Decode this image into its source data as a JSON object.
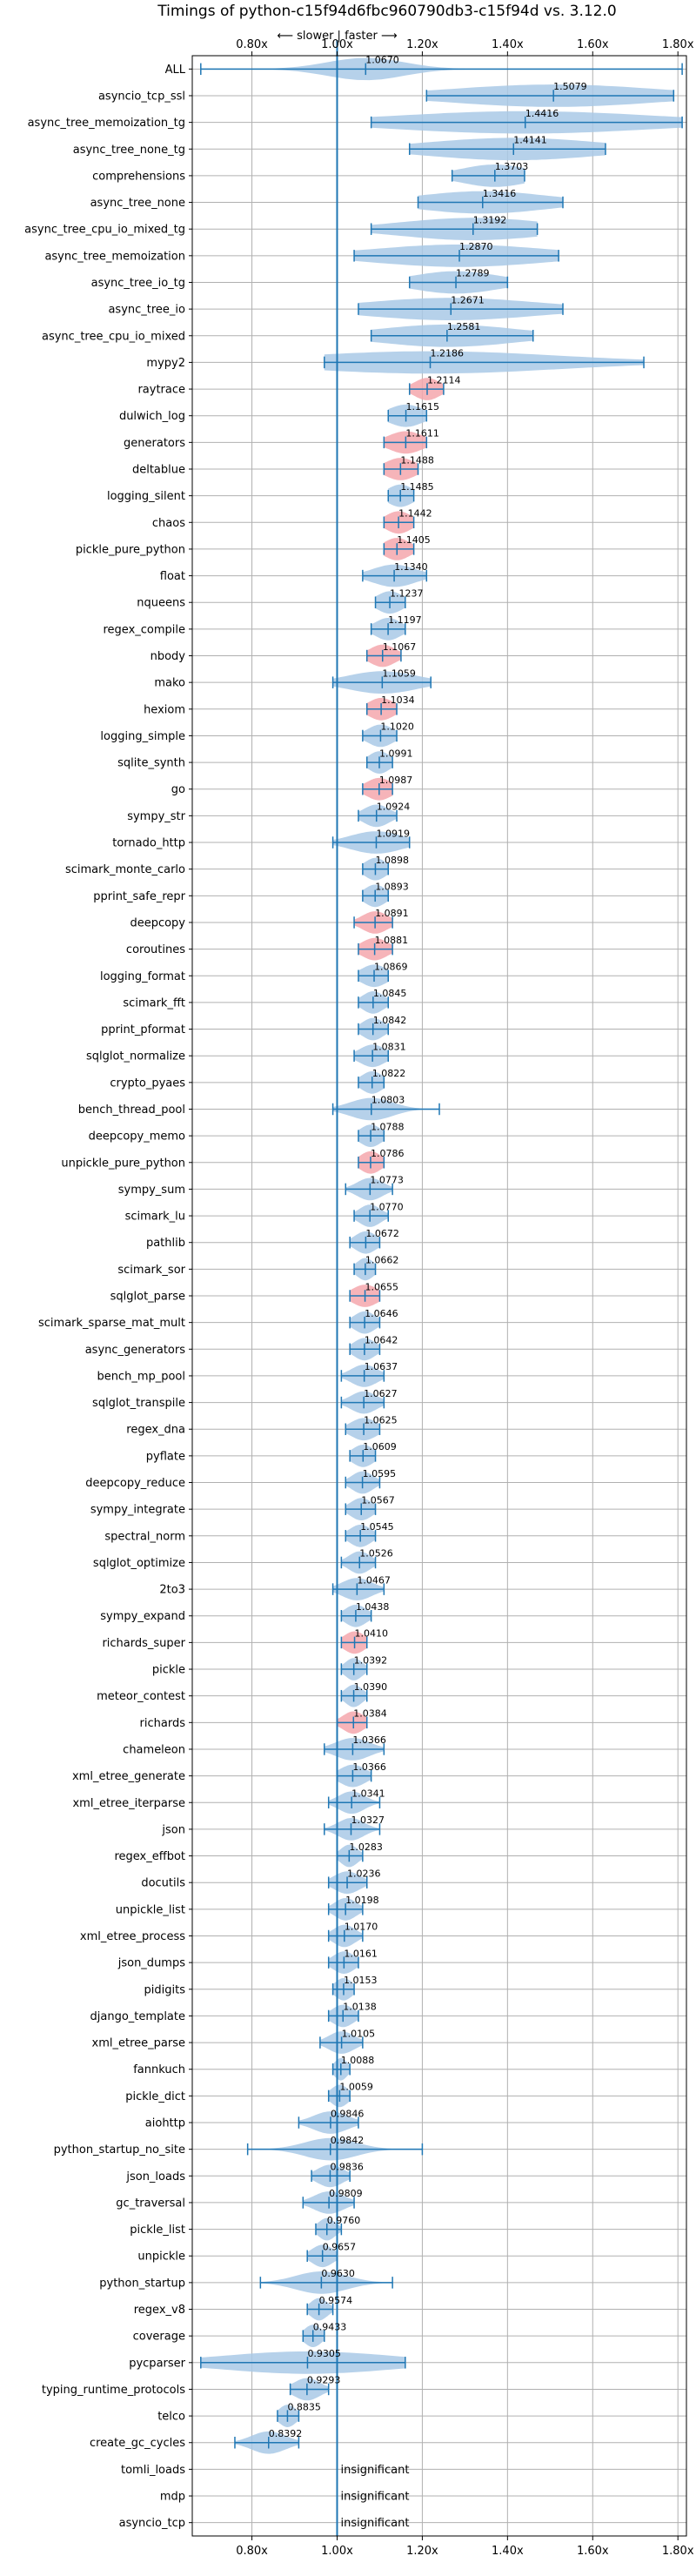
{
  "chart_data": {
    "type": "violin",
    "title": "Timings of python-c15f94d6fbc960790db3-c15f94d vs. 3.12.0",
    "annotation": "⟵ slower | faster ⟶",
    "xlim": [
      0.66,
      1.82
    ],
    "xticks": [
      0.8,
      1.0,
      1.2,
      1.4,
      1.6,
      1.8
    ],
    "xtick_labels": [
      "0.80x",
      "1.00x",
      "1.20x",
      "1.40x",
      "1.60x",
      "1.80x"
    ],
    "reference_x": 1.0,
    "grid": true,
    "colors": {
      "violin": "#a9c9e6",
      "highlight": "#f5a7ad",
      "line": "#1f77b4",
      "grid": "#b0b0b0"
    },
    "insignificant_label": "insignificant",
    "benchmarks": [
      {
        "name": "ALL",
        "value": 1.067,
        "label": "1.0670",
        "min": 0.68,
        "max": 1.81,
        "spread": 0.09
      },
      {
        "name": "asyncio_tcp_ssl",
        "value": 1.5079,
        "label": "1.5079",
        "min": 1.21,
        "max": 1.79,
        "spread": 0.24
      },
      {
        "name": "async_tree_memoization_tg",
        "value": 1.4416,
        "label": "1.4416",
        "min": 1.08,
        "max": 1.81,
        "spread": 0.3
      },
      {
        "name": "async_tree_none_tg",
        "value": 1.4141,
        "label": "1.4141",
        "min": 1.17,
        "max": 1.63,
        "spread": 0.2
      },
      {
        "name": "comprehensions",
        "value": 1.3703,
        "label": "1.3703",
        "min": 1.27,
        "max": 1.44,
        "spread": 0.08
      },
      {
        "name": "async_tree_none",
        "value": 1.3416,
        "label": "1.3416",
        "min": 1.19,
        "max": 1.53,
        "spread": 0.15
      },
      {
        "name": "async_tree_cpu_io_mixed_tg",
        "value": 1.3192,
        "label": "1.3192",
        "min": 1.08,
        "max": 1.47,
        "spread": 0.17
      },
      {
        "name": "async_tree_memoization",
        "value": 1.287,
        "label": "1.2870",
        "min": 1.04,
        "max": 1.52,
        "spread": 0.2
      },
      {
        "name": "async_tree_io_tg",
        "value": 1.2789,
        "label": "1.2789",
        "min": 1.17,
        "max": 1.4,
        "spread": 0.1
      },
      {
        "name": "async_tree_io",
        "value": 1.2671,
        "label": "1.2671",
        "min": 1.05,
        "max": 1.53,
        "spread": 0.2
      },
      {
        "name": "async_tree_cpu_io_mixed",
        "value": 1.2581,
        "label": "1.2581",
        "min": 1.08,
        "max": 1.46,
        "spread": 0.16
      },
      {
        "name": "mypy2",
        "value": 1.2186,
        "label": "1.2186",
        "min": 0.97,
        "max": 1.72,
        "spread": 0.3
      },
      {
        "name": "raytrace",
        "value": 1.2114,
        "label": "1.2114",
        "min": 1.17,
        "max": 1.25,
        "spread": 0.03,
        "highlight": true
      },
      {
        "name": "dulwich_log",
        "value": 1.1615,
        "label": "1.1615",
        "min": 1.12,
        "max": 1.21,
        "spread": 0.04
      },
      {
        "name": "generators",
        "value": 1.1611,
        "label": "1.1611",
        "min": 1.11,
        "max": 1.21,
        "spread": 0.04,
        "highlight": true
      },
      {
        "name": "deltablue",
        "value": 1.1488,
        "label": "1.1488",
        "min": 1.11,
        "max": 1.19,
        "spread": 0.035,
        "highlight": true
      },
      {
        "name": "logging_silent",
        "value": 1.1485,
        "label": "1.1485",
        "min": 1.12,
        "max": 1.18,
        "spread": 0.03
      },
      {
        "name": "chaos",
        "value": 1.1442,
        "label": "1.1442",
        "min": 1.11,
        "max": 1.18,
        "spread": 0.03,
        "highlight": true
      },
      {
        "name": "pickle_pure_python",
        "value": 1.1405,
        "label": "1.1405",
        "min": 1.11,
        "max": 1.18,
        "spread": 0.03,
        "highlight": true
      },
      {
        "name": "float",
        "value": 1.134,
        "label": "1.1340",
        "min": 1.06,
        "max": 1.21,
        "spread": 0.05
      },
      {
        "name": "nqueens",
        "value": 1.1237,
        "label": "1.1237",
        "min": 1.09,
        "max": 1.16,
        "spread": 0.03
      },
      {
        "name": "regex_compile",
        "value": 1.1197,
        "label": "1.1197",
        "min": 1.08,
        "max": 1.16,
        "spread": 0.03
      },
      {
        "name": "nbody",
        "value": 1.1067,
        "label": "1.1067",
        "min": 1.07,
        "max": 1.15,
        "spread": 0.03,
        "highlight": true
      },
      {
        "name": "mako",
        "value": 1.1059,
        "label": "1.1059",
        "min": 0.99,
        "max": 1.22,
        "spread": 0.08
      },
      {
        "name": "hexiom",
        "value": 1.1034,
        "label": "1.1034",
        "min": 1.07,
        "max": 1.14,
        "spread": 0.03,
        "highlight": true
      },
      {
        "name": "logging_simple",
        "value": 1.102,
        "label": "1.1020",
        "min": 1.06,
        "max": 1.14,
        "spread": 0.03
      },
      {
        "name": "sqlite_synth",
        "value": 1.0991,
        "label": "1.0991",
        "min": 1.07,
        "max": 1.13,
        "spread": 0.025
      },
      {
        "name": "go",
        "value": 1.0987,
        "label": "1.0987",
        "min": 1.06,
        "max": 1.13,
        "spread": 0.03,
        "highlight": true
      },
      {
        "name": "sympy_str",
        "value": 1.0924,
        "label": "1.0924",
        "min": 1.05,
        "max": 1.14,
        "spread": 0.03
      },
      {
        "name": "tornado_http",
        "value": 1.0919,
        "label": "1.0919",
        "min": 0.99,
        "max": 1.17,
        "spread": 0.06
      },
      {
        "name": "scimark_monte_carlo",
        "value": 1.0898,
        "label": "1.0898",
        "min": 1.06,
        "max": 1.12,
        "spread": 0.025
      },
      {
        "name": "pprint_safe_repr",
        "value": 1.0893,
        "label": "1.0893",
        "min": 1.06,
        "max": 1.12,
        "spread": 0.025
      },
      {
        "name": "deepcopy",
        "value": 1.0891,
        "label": "1.0891",
        "min": 1.04,
        "max": 1.13,
        "spread": 0.03,
        "highlight": true
      },
      {
        "name": "coroutines",
        "value": 1.0881,
        "label": "1.0881",
        "min": 1.05,
        "max": 1.13,
        "spread": 0.03,
        "highlight": true
      },
      {
        "name": "logging_format",
        "value": 1.0869,
        "label": "1.0869",
        "min": 1.05,
        "max": 1.12,
        "spread": 0.03
      },
      {
        "name": "scimark_fft",
        "value": 1.0845,
        "label": "1.0845",
        "min": 1.05,
        "max": 1.12,
        "spread": 0.025
      },
      {
        "name": "pprint_pformat",
        "value": 1.0842,
        "label": "1.0842",
        "min": 1.05,
        "max": 1.12,
        "spread": 0.025
      },
      {
        "name": "sqlglot_normalize",
        "value": 1.0831,
        "label": "1.0831",
        "min": 1.04,
        "max": 1.12,
        "spread": 0.03
      },
      {
        "name": "crypto_pyaes",
        "value": 1.0822,
        "label": "1.0822",
        "min": 1.05,
        "max": 1.11,
        "spread": 0.025
      },
      {
        "name": "bench_thread_pool",
        "value": 1.0803,
        "label": "1.0803",
        "min": 0.99,
        "max": 1.24,
        "spread": 0.05
      },
      {
        "name": "deepcopy_memo",
        "value": 1.0788,
        "label": "1.0788",
        "min": 1.05,
        "max": 1.11,
        "spread": 0.025
      },
      {
        "name": "unpickle_pure_python",
        "value": 1.0786,
        "label": "1.0786",
        "min": 1.05,
        "max": 1.11,
        "spread": 0.025,
        "highlight": true
      },
      {
        "name": "sympy_sum",
        "value": 1.0773,
        "label": "1.0773",
        "min": 1.02,
        "max": 1.13,
        "spread": 0.03
      },
      {
        "name": "scimark_lu",
        "value": 1.077,
        "label": "1.0770",
        "min": 1.04,
        "max": 1.12,
        "spread": 0.025
      },
      {
        "name": "pathlib",
        "value": 1.0672,
        "label": "1.0672",
        "min": 1.03,
        "max": 1.1,
        "spread": 0.025
      },
      {
        "name": "scimark_sor",
        "value": 1.0662,
        "label": "1.0662",
        "min": 1.04,
        "max": 1.09,
        "spread": 0.02
      },
      {
        "name": "sqlglot_parse",
        "value": 1.0655,
        "label": "1.0655",
        "min": 1.03,
        "max": 1.1,
        "spread": 0.03,
        "highlight": true
      },
      {
        "name": "scimark_sparse_mat_mult",
        "value": 1.0646,
        "label": "1.0646",
        "min": 1.03,
        "max": 1.1,
        "spread": 0.025
      },
      {
        "name": "async_generators",
        "value": 1.0642,
        "label": "1.0642",
        "min": 1.03,
        "max": 1.1,
        "spread": 0.025
      },
      {
        "name": "bench_mp_pool",
        "value": 1.0637,
        "label": "1.0637",
        "min": 1.01,
        "max": 1.11,
        "spread": 0.03
      },
      {
        "name": "sqlglot_transpile",
        "value": 1.0627,
        "label": "1.0627",
        "min": 1.01,
        "max": 1.11,
        "spread": 0.03
      },
      {
        "name": "regex_dna",
        "value": 1.0625,
        "label": "1.0625",
        "min": 1.02,
        "max": 1.1,
        "spread": 0.03
      },
      {
        "name": "pyflate",
        "value": 1.0609,
        "label": "1.0609",
        "min": 1.03,
        "max": 1.09,
        "spread": 0.025
      },
      {
        "name": "deepcopy_reduce",
        "value": 1.0595,
        "label": "1.0595",
        "min": 1.02,
        "max": 1.1,
        "spread": 0.025
      },
      {
        "name": "sympy_integrate",
        "value": 1.0567,
        "label": "1.0567",
        "min": 1.02,
        "max": 1.09,
        "spread": 0.025
      },
      {
        "name": "spectral_norm",
        "value": 1.0545,
        "label": "1.0545",
        "min": 1.02,
        "max": 1.09,
        "spread": 0.025
      },
      {
        "name": "sqlglot_optimize",
        "value": 1.0526,
        "label": "1.0526",
        "min": 1.01,
        "max": 1.09,
        "spread": 0.025
      },
      {
        "name": "2to3",
        "value": 1.0467,
        "label": "1.0467",
        "min": 0.99,
        "max": 1.11,
        "spread": 0.035
      },
      {
        "name": "sympy_expand",
        "value": 1.0438,
        "label": "1.0438",
        "min": 1.01,
        "max": 1.08,
        "spread": 0.025
      },
      {
        "name": "richards_super",
        "value": 1.041,
        "label": "1.0410",
        "min": 1.01,
        "max": 1.07,
        "spread": 0.025,
        "highlight": true
      },
      {
        "name": "pickle",
        "value": 1.0392,
        "label": "1.0392",
        "min": 1.01,
        "max": 1.07,
        "spread": 0.02
      },
      {
        "name": "meteor_contest",
        "value": 1.039,
        "label": "1.0390",
        "min": 1.01,
        "max": 1.07,
        "spread": 0.02
      },
      {
        "name": "richards",
        "value": 1.0384,
        "label": "1.0384",
        "min": 1.0,
        "max": 1.07,
        "spread": 0.025,
        "highlight": true
      },
      {
        "name": "chameleon",
        "value": 1.0366,
        "label": "1.0366",
        "min": 0.97,
        "max": 1.11,
        "spread": 0.04
      },
      {
        "name": "xml_etree_generate",
        "value": 1.0366,
        "label": "1.0366",
        "min": 1.0,
        "max": 1.08,
        "spread": 0.03
      },
      {
        "name": "xml_etree_iterparse",
        "value": 1.0341,
        "label": "1.0341",
        "min": 0.98,
        "max": 1.1,
        "spread": 0.03
      },
      {
        "name": "json",
        "value": 1.0327,
        "label": "1.0327",
        "min": 0.97,
        "max": 1.1,
        "spread": 0.03
      },
      {
        "name": "regex_effbot",
        "value": 1.0283,
        "label": "1.0283",
        "min": 1.0,
        "max": 1.06,
        "spread": 0.02
      },
      {
        "name": "docutils",
        "value": 1.0236,
        "label": "1.0236",
        "min": 0.98,
        "max": 1.07,
        "spread": 0.03
      },
      {
        "name": "unpickle_list",
        "value": 1.0198,
        "label": "1.0198",
        "min": 0.98,
        "max": 1.06,
        "spread": 0.025
      },
      {
        "name": "xml_etree_process",
        "value": 1.017,
        "label": "1.0170",
        "min": 0.98,
        "max": 1.06,
        "spread": 0.025
      },
      {
        "name": "json_dumps",
        "value": 1.0161,
        "label": "1.0161",
        "min": 0.98,
        "max": 1.05,
        "spread": 0.025
      },
      {
        "name": "pidigits",
        "value": 1.0153,
        "label": "1.0153",
        "min": 0.99,
        "max": 1.04,
        "spread": 0.02
      },
      {
        "name": "django_template",
        "value": 1.0138,
        "label": "1.0138",
        "min": 0.98,
        "max": 1.05,
        "spread": 0.025
      },
      {
        "name": "xml_etree_parse",
        "value": 1.0105,
        "label": "1.0105",
        "min": 0.96,
        "max": 1.06,
        "spread": 0.03
      },
      {
        "name": "fannkuch",
        "value": 1.0088,
        "label": "1.0088",
        "min": 0.99,
        "max": 1.03,
        "spread": 0.015
      },
      {
        "name": "pickle_dict",
        "value": 1.0059,
        "label": "1.0059",
        "min": 0.98,
        "max": 1.03,
        "spread": 0.02
      },
      {
        "name": "aiohttp",
        "value": 0.9846,
        "label": "0.9846",
        "min": 0.91,
        "max": 1.05,
        "spread": 0.04
      },
      {
        "name": "python_startup_no_site",
        "value": 0.9842,
        "label": "0.9842",
        "min": 0.79,
        "max": 1.2,
        "spread": 0.06
      },
      {
        "name": "json_loads",
        "value": 0.9836,
        "label": "0.9836",
        "min": 0.94,
        "max": 1.03,
        "spread": 0.03
      },
      {
        "name": "gc_traversal",
        "value": 0.9809,
        "label": "0.9809",
        "min": 0.92,
        "max": 1.04,
        "spread": 0.035
      },
      {
        "name": "pickle_list",
        "value": 0.976,
        "label": "0.9760",
        "min": 0.95,
        "max": 1.01,
        "spread": 0.02
      },
      {
        "name": "unpickle",
        "value": 0.9657,
        "label": "0.9657",
        "min": 0.93,
        "max": 1.0,
        "spread": 0.025
      },
      {
        "name": "python_startup",
        "value": 0.963,
        "label": "0.9630",
        "min": 0.82,
        "max": 1.13,
        "spread": 0.06
      },
      {
        "name": "regex_v8",
        "value": 0.9574,
        "label": "0.9574",
        "min": 0.93,
        "max": 0.99,
        "spread": 0.02
      },
      {
        "name": "coverage",
        "value": 0.9433,
        "label": "0.9433",
        "min": 0.92,
        "max": 0.97,
        "spread": 0.02
      },
      {
        "name": "pycparser",
        "value": 0.9305,
        "label": "0.9305",
        "min": 0.68,
        "max": 1.16,
        "spread": 0.2
      },
      {
        "name": "typing_runtime_protocols",
        "value": 0.9293,
        "label": "0.9293",
        "min": 0.89,
        "max": 0.98,
        "spread": 0.03
      },
      {
        "name": "telco",
        "value": 0.8835,
        "label": "0.8835",
        "min": 0.86,
        "max": 0.91,
        "spread": 0.02
      },
      {
        "name": "create_gc_cycles",
        "value": 0.8392,
        "label": "0.8392",
        "min": 0.76,
        "max": 0.91,
        "spread": 0.04
      },
      {
        "name": "tomli_loads",
        "insignificant": true
      },
      {
        "name": "mdp",
        "insignificant": true
      },
      {
        "name": "asyncio_tcp",
        "insignificant": true
      }
    ]
  }
}
